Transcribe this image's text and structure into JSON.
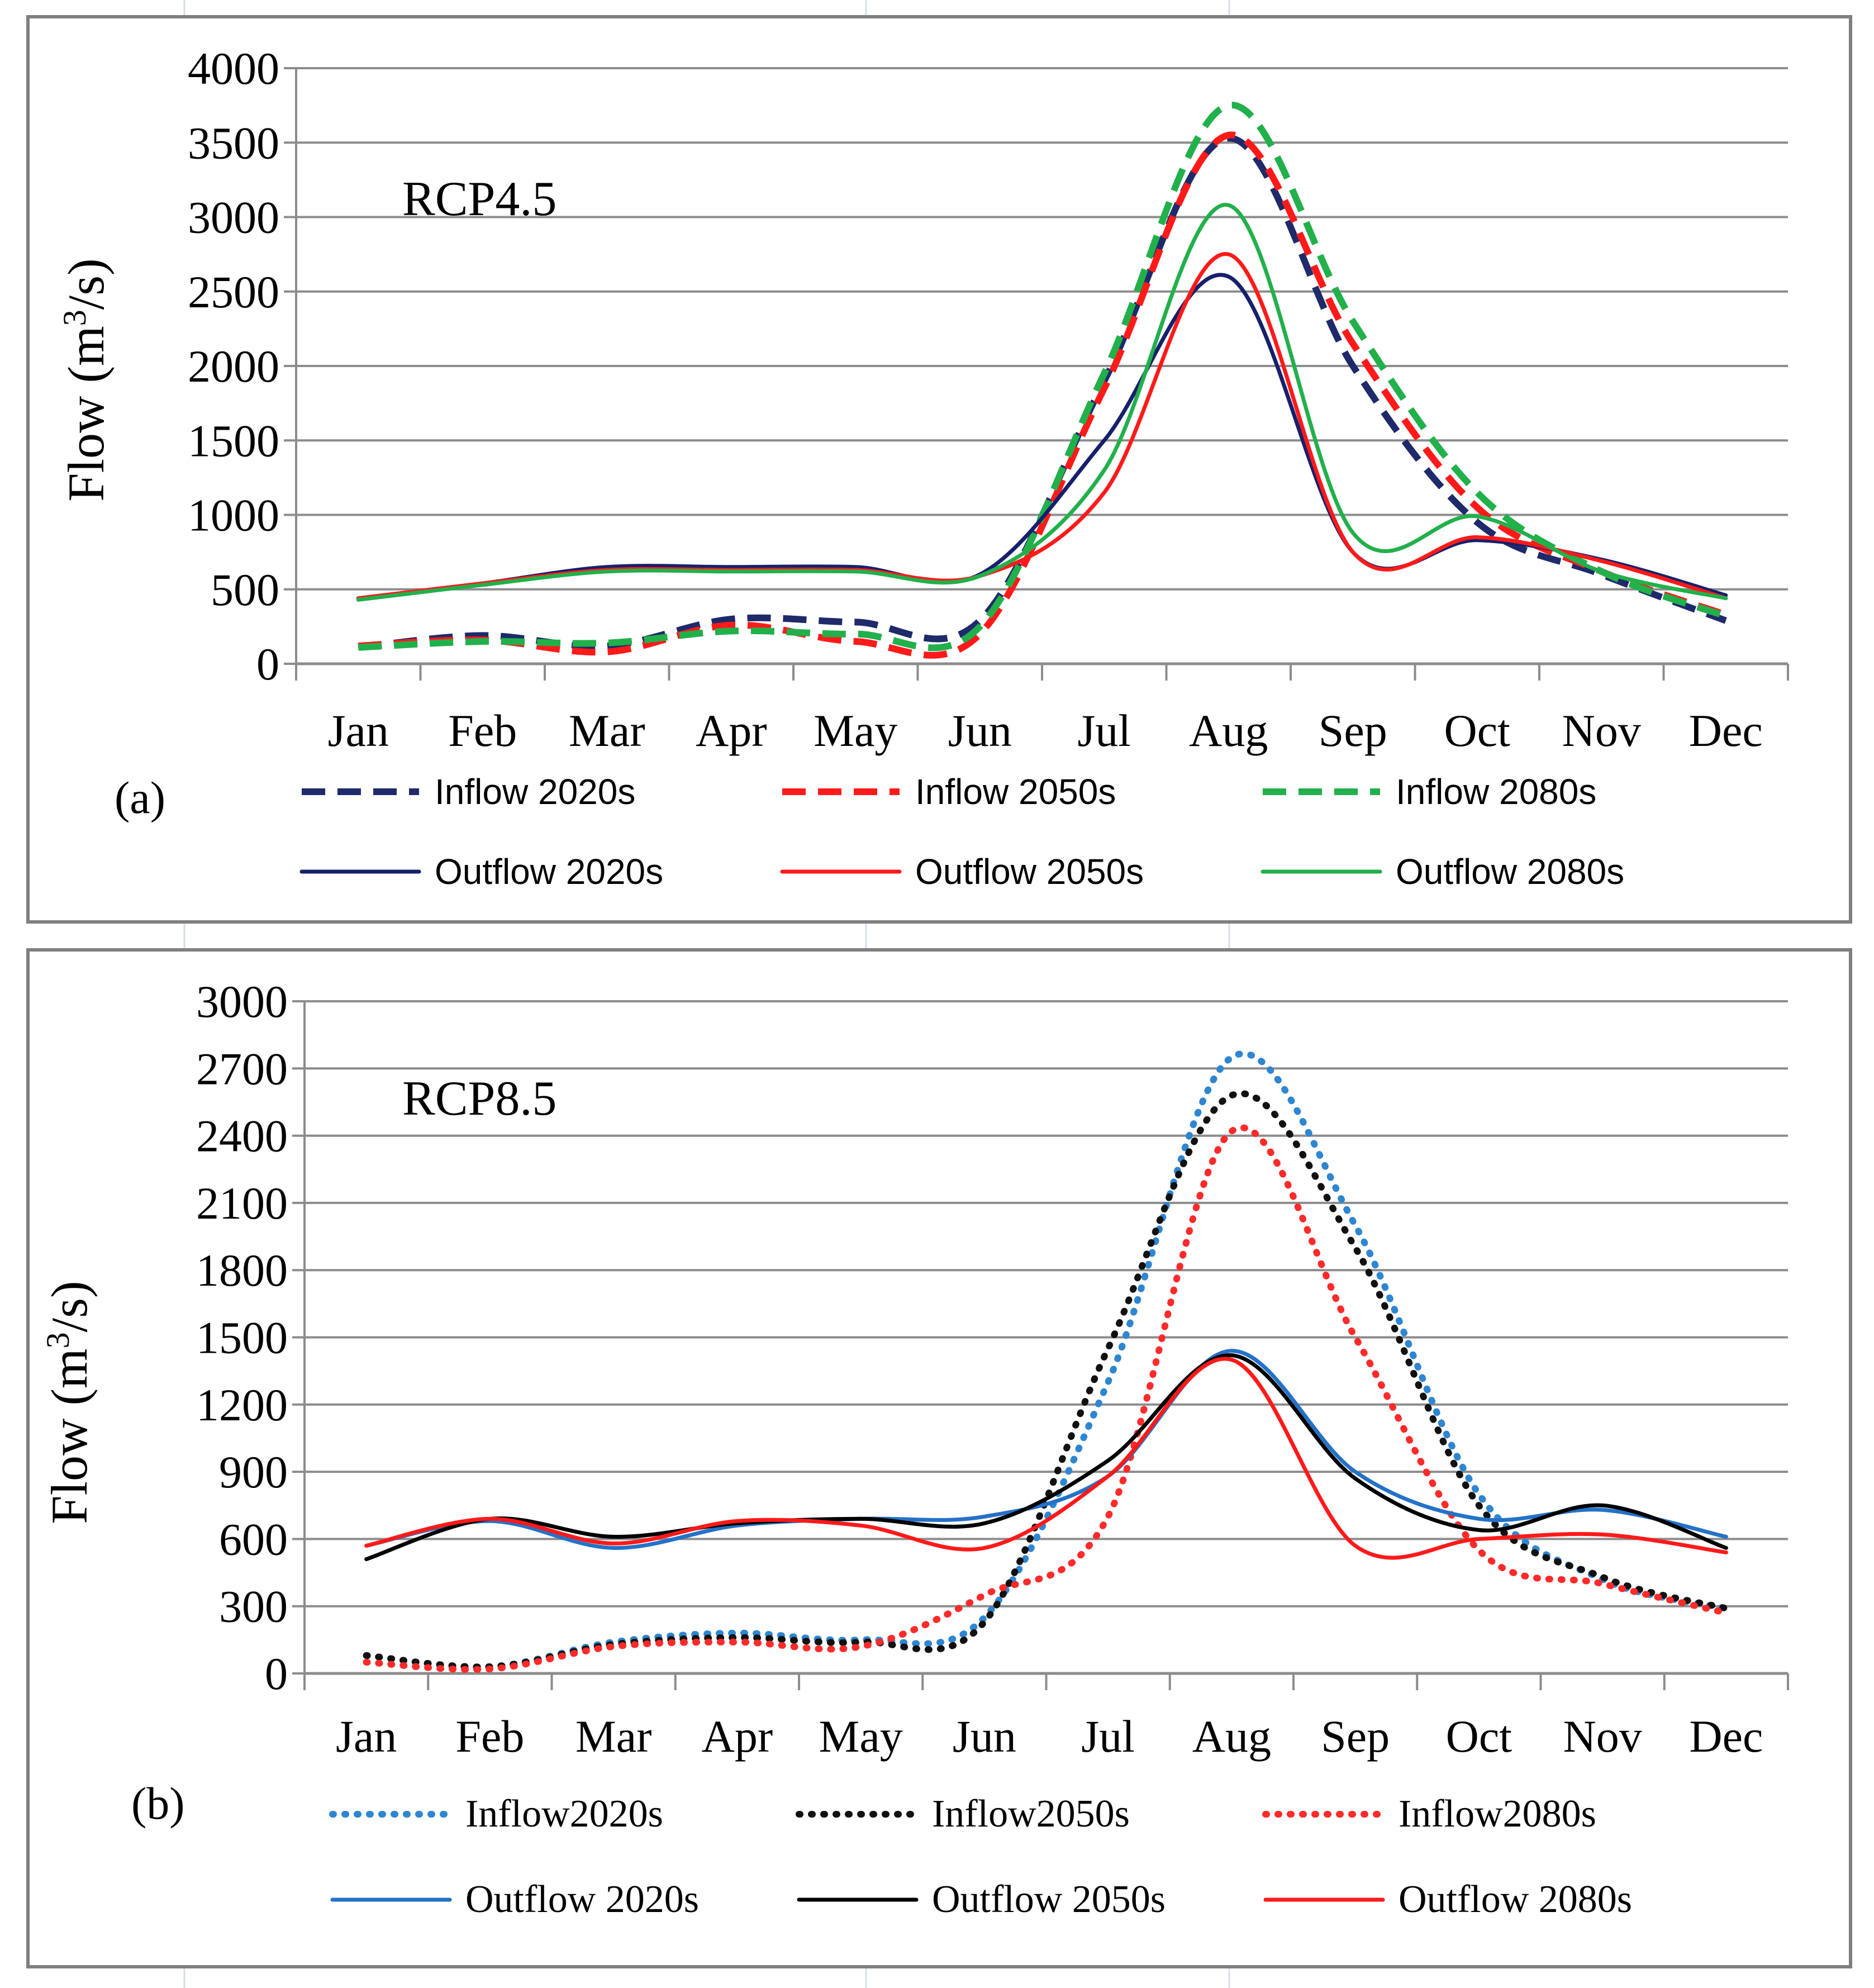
{
  "chart_data": [
    {
      "id": "a",
      "type": "line",
      "panel_label": "(a)",
      "annotation": "RCP4.5",
      "title": "",
      "xlabel": "",
      "ylabel": "Flow (m³/s)",
      "ylabel_main": "Flow (m",
      "ylabel_sup": "3",
      "ylabel_end": "/s)",
      "ylim": [
        0,
        4000
      ],
      "yticks": [
        0,
        500,
        1000,
        1500,
        2000,
        2500,
        3000,
        3500,
        4000
      ],
      "categories": [
        "Jan",
        "Feb",
        "Mar",
        "Apr",
        "May",
        "Jun",
        "Jul",
        "Aug",
        "Sep",
        "Oct",
        "Nov",
        "Dec"
      ],
      "grid": "horizontal",
      "legend_position": "bottom",
      "series": [
        {
          "name": "Inflow 2020s",
          "color": "#1F2A6B",
          "style": "dashed",
          "values": [
            110,
            190,
            120,
            300,
            280,
            290,
            1900,
            3530,
            2000,
            950,
            600,
            290
          ]
        },
        {
          "name": "Inflow 2050s",
          "color": "#FF1A1A",
          "style": "dashed",
          "values": [
            120,
            160,
            80,
            260,
            150,
            200,
            1850,
            3550,
            2150,
            1050,
            620,
            330
          ]
        },
        {
          "name": "Inflow 2080s",
          "color": "#22B04B",
          "style": "dashed",
          "values": [
            110,
            150,
            140,
            220,
            200,
            250,
            1950,
            3750,
            2300,
            1150,
            620,
            320
          ]
        },
        {
          "name": "Outflow 2020s",
          "color": "#16206B",
          "style": "solid",
          "values": [
            440,
            540,
            650,
            650,
            650,
            600,
            1500,
            2600,
            750,
            830,
            700,
            460
          ]
        },
        {
          "name": "Outflow 2050s",
          "color": "#FF1A1A",
          "style": "solid",
          "values": [
            440,
            540,
            630,
            630,
            630,
            590,
            1150,
            2750,
            750,
            850,
            690,
            440
          ]
        },
        {
          "name": "Outflow 2080s",
          "color": "#22B04B",
          "style": "solid",
          "values": [
            430,
            530,
            620,
            620,
            620,
            590,
            1300,
            3080,
            880,
            990,
            620,
            440
          ]
        }
      ]
    },
    {
      "id": "b",
      "type": "line",
      "panel_label": "(b)",
      "annotation": "RCP8.5",
      "title": "",
      "xlabel": "",
      "ylabel": "Flow (m³/s)",
      "ylabel_main": "Flow (m",
      "ylabel_sup": "3",
      "ylabel_end": "/s)",
      "ylim": [
        0,
        3000
      ],
      "yticks": [
        0,
        300,
        600,
        900,
        1200,
        1500,
        1800,
        2100,
        2400,
        2700,
        3000
      ],
      "categories": [
        "Jan",
        "Feb",
        "Mar",
        "Apr",
        "May",
        "Jun",
        "Jul",
        "Aug",
        "Sep",
        "Oct",
        "Nov",
        "Dec"
      ],
      "grid": "horizontal",
      "legend_position": "bottom",
      "series": [
        {
          "name": "Inflow2020s",
          "color": "#2E86D1",
          "style": "dotted",
          "values": [
            80,
            30,
            140,
            180,
            150,
            250,
            1300,
            2750,
            2000,
            800,
            420,
            290
          ]
        },
        {
          "name": "Inflow2050s",
          "color": "#111111",
          "style": "dotted",
          "values": [
            80,
            30,
            130,
            160,
            140,
            230,
            1450,
            2580,
            1900,
            750,
            430,
            290
          ]
        },
        {
          "name": "Inflow2080s",
          "color": "#FF2A2A",
          "style": "dotted",
          "values": [
            50,
            20,
            120,
            140,
            120,
            350,
            700,
            2420,
            1500,
            550,
            400,
            270
          ]
        },
        {
          "name": "Outflow 2020s",
          "color": "#2472C8",
          "style": "solid",
          "values": [
            570,
            680,
            560,
            660,
            690,
            700,
            880,
            1440,
            900,
            690,
            730,
            610
          ]
        },
        {
          "name": "Outflow 2050s",
          "color": "#000000",
          "style": "solid",
          "values": [
            510,
            690,
            610,
            670,
            690,
            670,
            950,
            1420,
            870,
            640,
            750,
            560
          ]
        },
        {
          "name": "Outflow 2080s",
          "color": "#FF1A1A",
          "style": "solid",
          "values": [
            570,
            690,
            580,
            680,
            660,
            560,
            880,
            1400,
            570,
            600,
            620,
            540
          ]
        }
      ]
    }
  ]
}
